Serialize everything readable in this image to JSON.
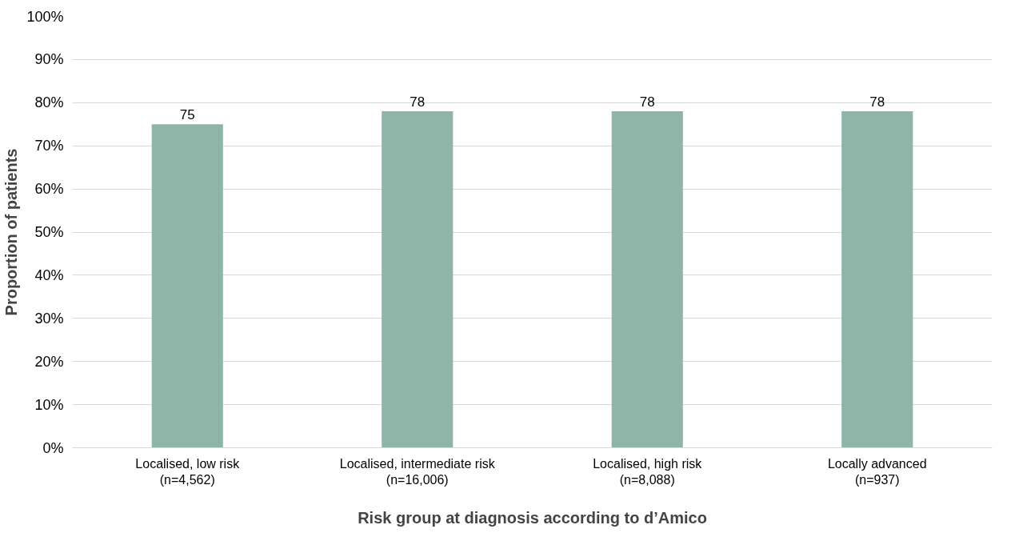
{
  "chart_data": {
    "type": "bar",
    "xlabel": "Risk group at diagnosis according to d’Amico",
    "ylabel": "Proportion of patients",
    "categories": [
      "Localised, low risk\n(n=4,562)",
      "Localised, intermediate risk\n(n=16,006)",
      "Localised, high risk\n(n=8,088)",
      "Locally advanced\n(n=937)"
    ],
    "values": [
      75,
      78,
      78,
      78
    ],
    "color": "#8fb5a8",
    "data_labels": true,
    "grid": "y",
    "ylim": [
      0,
      100
    ],
    "yticks": [
      {
        "value": 0,
        "label": "0%"
      },
      {
        "value": 10,
        "label": "10%"
      },
      {
        "value": 20,
        "label": "20%"
      },
      {
        "value": 30,
        "label": "30%"
      },
      {
        "value": 40,
        "label": "40%"
      },
      {
        "value": 50,
        "label": "50%"
      },
      {
        "value": 60,
        "label": "60%"
      },
      {
        "value": 70,
        "label": "70%"
      },
      {
        "value": 80,
        "label": "80%"
      },
      {
        "value": 90,
        "label": "90%"
      },
      {
        "value": 100,
        "label": "100%"
      }
    ]
  }
}
